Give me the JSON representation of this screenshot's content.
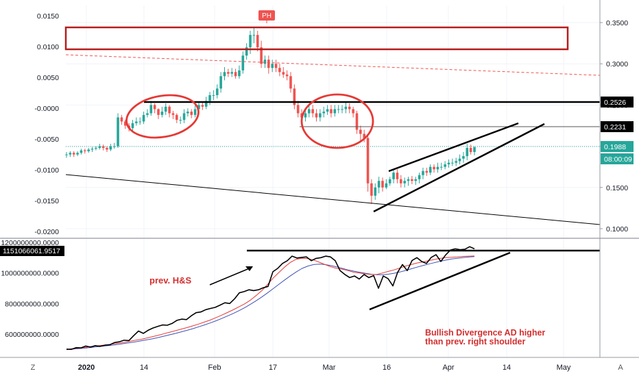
{
  "colors": {
    "bull": "#26a69a",
    "bear": "#ef5350",
    "annotation_red": "#d32f2f",
    "black": "#000000",
    "ema_red": "#e53935",
    "ema_blue": "#3f51b5",
    "teal_label": "#26a69a"
  },
  "chart_data": [
    {
      "type": "candlestick",
      "title": "",
      "x_ticks": [
        "2020",
        "14",
        "Feb",
        "17",
        "Mar",
        "16",
        "Apr",
        "14",
        "May"
      ],
      "y_left_ticks": [
        "0.0150",
        "0.0100",
        "0.0050",
        "-0.0000",
        "-0.0050",
        "-0.0100",
        "-0.0150",
        "-0.0200"
      ],
      "y_right_ticks": [
        "0.3500",
        "0.3000",
        "0.2500",
        "0.2000",
        "0.1500",
        "0.1000"
      ],
      "ylim_right": [
        0.09,
        0.365
      ],
      "ylim_left": [
        -0.021,
        0.0165
      ],
      "price_labels": [
        {
          "value": 0.2526,
          "text": "0.2526",
          "style": "black"
        },
        {
          "value": 0.2231,
          "text": "0.2231",
          "style": "black"
        },
        {
          "value": 0.1988,
          "text": "0.1988",
          "style": "teal"
        },
        {
          "value": 0.1845,
          "text": "08:00:09",
          "style": "teal"
        }
      ],
      "pivot_label": "PH",
      "candles": {
        "open": [
          0.19,
          0.19,
          0.192,
          0.19,
          0.192,
          0.195,
          0.194,
          0.196,
          0.197,
          0.198,
          0.2,
          0.198,
          0.196,
          0.2,
          0.2,
          0.235,
          0.23,
          0.225,
          0.222,
          0.228,
          0.23,
          0.23,
          0.238,
          0.24,
          0.25,
          0.245,
          0.238,
          0.242,
          0.248,
          0.24,
          0.238,
          0.232,
          0.232,
          0.24,
          0.242,
          0.238,
          0.245,
          0.25,
          0.248,
          0.255,
          0.262,
          0.262,
          0.27,
          0.285,
          0.29,
          0.288,
          0.29,
          0.285,
          0.292,
          0.31,
          0.32,
          0.335,
          0.335,
          0.32,
          0.3,
          0.305,
          0.295,
          0.3,
          0.295,
          0.29,
          0.287,
          0.285,
          0.27,
          0.25,
          0.24,
          0.235,
          0.24,
          0.245,
          0.24,
          0.235,
          0.24,
          0.242,
          0.245,
          0.24,
          0.245,
          0.245,
          0.245,
          0.248,
          0.245,
          0.24,
          0.22,
          0.215,
          0.21,
          0.155,
          0.14,
          0.15,
          0.158,
          0.15,
          0.155,
          0.16,
          0.168,
          0.16,
          0.155,
          0.158,
          0.16,
          0.158,
          0.16,
          0.165,
          0.17,
          0.168,
          0.175,
          0.172,
          0.175,
          0.175,
          0.178,
          0.18,
          0.18,
          0.182,
          0.185,
          0.188,
          0.198,
          0.193
        ],
        "close": [
          0.19,
          0.192,
          0.19,
          0.192,
          0.195,
          0.194,
          0.196,
          0.197,
          0.198,
          0.2,
          0.198,
          0.196,
          0.2,
          0.2,
          0.235,
          0.23,
          0.225,
          0.222,
          0.228,
          0.23,
          0.23,
          0.238,
          0.24,
          0.25,
          0.245,
          0.238,
          0.242,
          0.248,
          0.24,
          0.238,
          0.232,
          0.232,
          0.24,
          0.242,
          0.238,
          0.245,
          0.25,
          0.248,
          0.255,
          0.262,
          0.262,
          0.27,
          0.285,
          0.29,
          0.288,
          0.29,
          0.285,
          0.292,
          0.31,
          0.32,
          0.335,
          0.335,
          0.32,
          0.3,
          0.305,
          0.295,
          0.3,
          0.295,
          0.29,
          0.287,
          0.285,
          0.27,
          0.25,
          0.24,
          0.235,
          0.24,
          0.245,
          0.24,
          0.235,
          0.24,
          0.242,
          0.245,
          0.24,
          0.245,
          0.245,
          0.245,
          0.248,
          0.245,
          0.24,
          0.22,
          0.215,
          0.21,
          0.155,
          0.14,
          0.15,
          0.158,
          0.15,
          0.155,
          0.16,
          0.168,
          0.16,
          0.155,
          0.158,
          0.16,
          0.158,
          0.16,
          0.165,
          0.17,
          0.168,
          0.175,
          0.172,
          0.175,
          0.175,
          0.178,
          0.18,
          0.18,
          0.182,
          0.185,
          0.188,
          0.198,
          0.193,
          0.1988
        ],
        "high": [
          0.193,
          0.194,
          0.194,
          0.194,
          0.197,
          0.197,
          0.198,
          0.199,
          0.2,
          0.203,
          0.202,
          0.2,
          0.203,
          0.204,
          0.24,
          0.238,
          0.232,
          0.228,
          0.232,
          0.235,
          0.235,
          0.242,
          0.245,
          0.255,
          0.252,
          0.246,
          0.248,
          0.252,
          0.25,
          0.243,
          0.24,
          0.236,
          0.245,
          0.246,
          0.245,
          0.25,
          0.254,
          0.253,
          0.26,
          0.266,
          0.268,
          0.275,
          0.29,
          0.296,
          0.294,
          0.295,
          0.294,
          0.298,
          0.315,
          0.325,
          0.34,
          0.345,
          0.34,
          0.328,
          0.31,
          0.31,
          0.305,
          0.305,
          0.3,
          0.296,
          0.292,
          0.29,
          0.275,
          0.255,
          0.245,
          0.245,
          0.25,
          0.25,
          0.245,
          0.245,
          0.248,
          0.25,
          0.25,
          0.25,
          0.25,
          0.25,
          0.253,
          0.252,
          0.248,
          0.243,
          0.225,
          0.22,
          0.215,
          0.16,
          0.155,
          0.163,
          0.162,
          0.16,
          0.163,
          0.172,
          0.172,
          0.165,
          0.162,
          0.163,
          0.164,
          0.163,
          0.168,
          0.174,
          0.174,
          0.178,
          0.178,
          0.18,
          0.18,
          0.182,
          0.184,
          0.185,
          0.186,
          0.19,
          0.193,
          0.203,
          0.202,
          0.2
        ],
        "low": [
          0.186,
          0.187,
          0.187,
          0.188,
          0.19,
          0.191,
          0.192,
          0.193,
          0.195,
          0.196,
          0.195,
          0.193,
          0.194,
          0.197,
          0.198,
          0.226,
          0.221,
          0.218,
          0.219,
          0.225,
          0.226,
          0.227,
          0.235,
          0.237,
          0.24,
          0.233,
          0.235,
          0.238,
          0.235,
          0.233,
          0.228,
          0.227,
          0.228,
          0.236,
          0.234,
          0.235,
          0.24,
          0.244,
          0.245,
          0.25,
          0.256,
          0.258,
          0.265,
          0.28,
          0.284,
          0.284,
          0.282,
          0.282,
          0.288,
          0.305,
          0.312,
          0.325,
          0.315,
          0.295,
          0.295,
          0.288,
          0.29,
          0.29,
          0.285,
          0.283,
          0.28,
          0.265,
          0.245,
          0.235,
          0.23,
          0.23,
          0.235,
          0.235,
          0.23,
          0.23,
          0.235,
          0.238,
          0.235,
          0.236,
          0.24,
          0.24,
          0.24,
          0.24,
          0.235,
          0.215,
          0.205,
          0.205,
          0.145,
          0.13,
          0.135,
          0.143,
          0.145,
          0.148,
          0.152,
          0.155,
          0.155,
          0.15,
          0.15,
          0.152,
          0.154,
          0.153,
          0.155,
          0.16,
          0.164,
          0.165,
          0.168,
          0.168,
          0.171,
          0.172,
          0.174,
          0.176,
          0.176,
          0.178,
          0.18,
          0.183,
          0.19,
          0.189
        ]
      }
    },
    {
      "type": "line",
      "title": "",
      "y_ticks": [
        "1200000000.0000",
        "1000000000.0000",
        "800000000.0000",
        "600000000.0000"
      ],
      "ylim": [
        455000000,
        1230000000
      ],
      "current_value": 1151066061.9517,
      "current_value_label": "1151066061.9517",
      "series": [
        {
          "values": [
            502,
            500,
            512,
            510,
            522,
            515,
            525,
            520,
            528,
            530,
            545,
            550,
            560,
            558,
            590,
            620,
            605,
            625,
            640,
            650,
            660,
            658,
            670,
            690,
            698,
            695,
            720,
            740,
            745,
            760,
            768,
            775,
            790,
            805,
            800,
            830,
            870,
            878,
            890,
            885,
            890,
            903,
            912,
            1008,
            1030,
            1062,
            1080,
            1110,
            1098,
            1102,
            1105,
            1080,
            1095,
            1100,
            1110,
            1105,
            1080,
            1015,
            990,
            970,
            980,
            960,
            990,
            970,
            983,
            900,
            980,
            963,
            915,
            1005,
            1055,
            1015,
            1082,
            1100,
            1075,
            1062,
            1102,
            1120,
            1075,
            1118,
            1150,
            1158,
            1152,
            1155,
            1172,
            1158
          ]
        },
        {
          "values": [
            500,
            505,
            508,
            512,
            518,
            522,
            526,
            530,
            535,
            540,
            546,
            553,
            560,
            566,
            575,
            584,
            593,
            603,
            613,
            623,
            633,
            643,
            654,
            666,
            679,
            692,
            708,
            724,
            741,
            759,
            778,
            798,
            822,
            852,
            885,
            925,
            968,
            1005,
            1040,
            1070,
            1090,
            1096,
            1094,
            1085,
            1070,
            1055,
            1040,
            1030,
            1025,
            1015,
            1005,
            1000,
            994,
            990,
            990,
            1000,
            1010,
            1020,
            1032,
            1045,
            1055,
            1065,
            1072,
            1080,
            1088,
            1095,
            1100,
            1103,
            1105,
            1108,
            1110,
            1111
          ]
        },
        {
          "values": [
            498,
            502,
            505,
            508,
            512,
            516,
            520,
            524,
            528,
            533,
            538,
            544,
            550,
            556,
            563,
            570,
            578,
            587,
            596,
            605,
            615,
            625,
            636,
            648,
            660,
            673,
            687,
            702,
            718,
            735,
            753,
            773,
            795,
            818,
            843,
            870,
            898,
            927,
            955,
            982,
            1007,
            1030,
            1045,
            1055,
            1058,
            1055,
            1048,
            1040,
            1030,
            1020,
            1012,
            1005,
            998,
            992,
            988,
            988,
            992,
            998,
            1006,
            1016,
            1027,
            1038,
            1048,
            1058,
            1067,
            1076,
            1084,
            1091,
            1096,
            1100,
            1104,
            1107
          ]
        }
      ]
    }
  ],
  "annotations": {
    "prev_hs": "prev. H&S",
    "bullish_line1": "Bullish Divergence AD higher",
    "bullish_line2": "than prev. right shoulder"
  },
  "bottom_icons": {
    "left": "Z",
    "right": "A"
  }
}
